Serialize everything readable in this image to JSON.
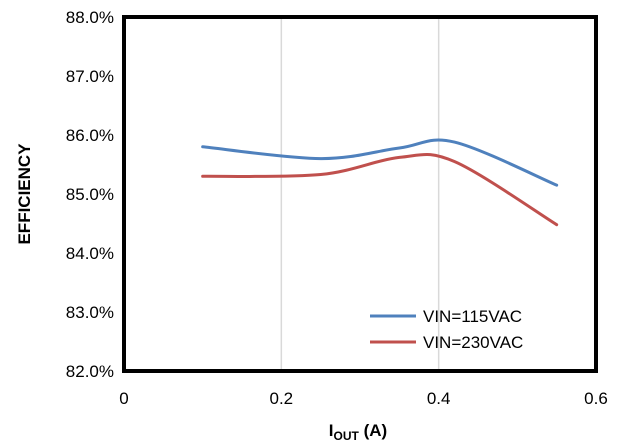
{
  "chart_data": {
    "type": "line",
    "xlabel": {
      "main": "I",
      "sub": "OUT",
      "suffix": " (A)"
    },
    "ylabel": "EFFICIENCY",
    "xlim": [
      0,
      0.6
    ],
    "ylim": [
      82.0,
      88.0
    ],
    "x_ticks": [
      0,
      0.2,
      0.4,
      0.6
    ],
    "x_tick_labels": [
      "0",
      "0.2",
      "0.4",
      "0.6"
    ],
    "y_ticks": [
      82,
      83,
      84,
      85,
      86,
      87,
      88
    ],
    "y_tick_labels": [
      "82.0%",
      "83.0%",
      "84.0%",
      "85.0%",
      "86.0%",
      "87.0%",
      "88.0%"
    ],
    "grid": "vertical",
    "legend_position": "bottom-right",
    "series": [
      {
        "name": "VIN=115VAC",
        "color": "#4f81bd",
        "x": [
          0.1,
          0.25,
          0.35,
          0.42,
          0.55
        ],
        "y": [
          85.8,
          85.6,
          85.78,
          85.88,
          85.15
        ]
      },
      {
        "name": "VIN=230VAC",
        "color": "#c0504d",
        "x": [
          0.1,
          0.25,
          0.35,
          0.42,
          0.55
        ],
        "y": [
          85.3,
          85.33,
          85.62,
          85.55,
          84.48
        ]
      }
    ]
  }
}
